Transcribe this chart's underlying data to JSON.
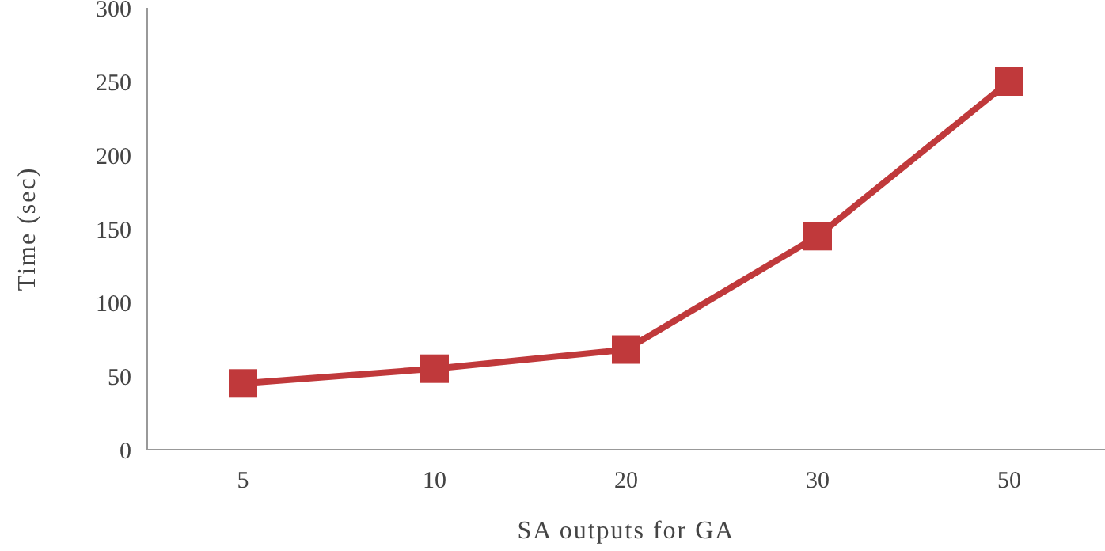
{
  "chart_data": {
    "type": "line",
    "xlabel": "SA outputs for GA",
    "ylabel": "Time (sec)",
    "categories": [
      "5",
      "10",
      "20",
      "30",
      "50"
    ],
    "series": [
      {
        "color": "#c0393b",
        "values": [
          45,
          55,
          68,
          145,
          250
        ]
      }
    ],
    "ylim": [
      0,
      300
    ],
    "yticks": [
      0,
      50,
      100,
      150,
      200,
      250,
      300
    ],
    "grid": false,
    "marker": "square",
    "line_style": "solid"
  }
}
